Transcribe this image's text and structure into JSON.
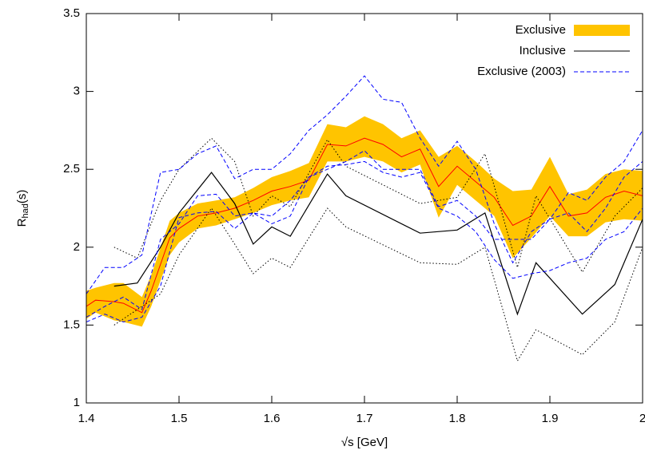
{
  "chart_data": {
    "type": "line",
    "x_label": "√s [GeV]",
    "y_label": {
      "base": "R",
      "subscript": "had",
      "suffix": "(s)"
    },
    "xlim": [
      1.4,
      2.0
    ],
    "ylim": [
      1,
      3.5
    ],
    "xticks": [
      1.4,
      1.5,
      1.6,
      1.7,
      1.8,
      1.9,
      2
    ],
    "yticks": [
      1,
      1.5,
      2,
      2.5,
      3,
      3.5
    ],
    "legend": "top-right",
    "series": [
      {
        "name": "Exclusive",
        "style": "band",
        "color": "#ff0000",
        "band_color": "#ffc400",
        "x": [
          1.4,
          1.41,
          1.43,
          1.44,
          1.46,
          1.47,
          1.49,
          1.5,
          1.52,
          1.54,
          1.56,
          1.58,
          1.6,
          1.62,
          1.64,
          1.66,
          1.68,
          1.7,
          1.72,
          1.74,
          1.76,
          1.78,
          1.8,
          1.82,
          1.84,
          1.86,
          1.88,
          1.9,
          1.92,
          1.94,
          1.96,
          1.98,
          2.0
        ],
        "values": [
          1.62,
          1.66,
          1.65,
          1.64,
          1.58,
          1.72,
          2.06,
          2.12,
          2.2,
          2.22,
          2.25,
          2.3,
          2.36,
          2.39,
          2.43,
          2.66,
          2.65,
          2.7,
          2.66,
          2.58,
          2.63,
          2.39,
          2.52,
          2.42,
          2.32,
          2.14,
          2.2,
          2.39,
          2.2,
          2.22,
          2.32,
          2.36,
          2.33
        ],
        "lower": [
          1.54,
          1.58,
          1.53,
          1.52,
          1.49,
          1.62,
          1.95,
          2.03,
          2.12,
          2.14,
          2.18,
          2.22,
          2.27,
          2.3,
          2.32,
          2.55,
          2.55,
          2.58,
          2.55,
          2.48,
          2.53,
          2.19,
          2.4,
          2.3,
          2.2,
          1.93,
          2.06,
          2.2,
          2.07,
          2.07,
          2.16,
          2.18,
          2.17
        ],
        "upper": [
          1.72,
          1.74,
          1.77,
          1.77,
          1.68,
          1.82,
          2.17,
          2.22,
          2.28,
          2.3,
          2.32,
          2.38,
          2.45,
          2.49,
          2.54,
          2.79,
          2.77,
          2.84,
          2.79,
          2.7,
          2.75,
          2.58,
          2.65,
          2.55,
          2.44,
          2.36,
          2.37,
          2.58,
          2.34,
          2.37,
          2.47,
          2.5,
          2.49
        ]
      },
      {
        "name": "Inclusive",
        "style": "solid",
        "color": "#000000",
        "x": [
          1.43,
          1.455,
          1.48,
          1.5,
          1.535,
          1.56,
          1.58,
          1.6,
          1.62,
          1.66,
          1.68,
          1.76,
          1.8,
          1.83,
          1.865,
          1.885,
          1.935,
          1.97,
          2.0
        ],
        "values": [
          1.75,
          1.77,
          2.0,
          2.22,
          2.48,
          2.28,
          2.02,
          2.13,
          2.07,
          2.47,
          2.33,
          2.09,
          2.11,
          2.22,
          1.57,
          1.9,
          1.57,
          1.76,
          2.18
        ],
        "lower": [
          1.5,
          1.6,
          1.7,
          1.95,
          2.25,
          2.02,
          1.83,
          1.93,
          1.87,
          2.25,
          2.13,
          1.9,
          1.89,
          2.0,
          1.27,
          1.47,
          1.31,
          1.52,
          2.0
        ],
        "upper": [
          2.0,
          1.93,
          2.3,
          2.5,
          2.7,
          2.55,
          2.2,
          2.33,
          2.26,
          2.69,
          2.52,
          2.28,
          2.32,
          2.6,
          1.87,
          2.33,
          1.84,
          2.2,
          2.38
        ]
      },
      {
        "name": "Exclusive (2003)",
        "style": "dashed",
        "color": "#0000ff",
        "x": [
          1.4,
          1.42,
          1.44,
          1.46,
          1.48,
          1.5,
          1.52,
          1.54,
          1.56,
          1.58,
          1.6,
          1.62,
          1.64,
          1.66,
          1.68,
          1.7,
          1.72,
          1.74,
          1.76,
          1.78,
          1.8,
          1.82,
          1.84,
          1.86,
          1.88,
          1.9,
          1.92,
          1.94,
          1.96,
          1.98,
          2.0
        ],
        "values": [
          1.55,
          1.62,
          1.68,
          1.6,
          2.05,
          2.15,
          2.33,
          2.34,
          2.2,
          2.22,
          2.2,
          2.3,
          2.45,
          2.5,
          2.55,
          2.62,
          2.5,
          2.5,
          2.5,
          2.26,
          2.3,
          2.2,
          2.05,
          2.05,
          2.05,
          2.18,
          2.22,
          2.1,
          2.25,
          2.45,
          2.55
        ],
        "lower": [
          1.52,
          1.57,
          1.52,
          1.55,
          1.75,
          2.19,
          2.22,
          2.23,
          2.12,
          2.22,
          2.15,
          2.2,
          2.45,
          2.52,
          2.53,
          2.55,
          2.48,
          2.45,
          2.48,
          2.25,
          2.2,
          2.1,
          1.92,
          1.8,
          1.83,
          1.85,
          1.9,
          1.93,
          2.05,
          2.1,
          2.25
        ],
        "upper": [
          1.7,
          1.87,
          1.87,
          1.95,
          2.48,
          2.5,
          2.6,
          2.65,
          2.44,
          2.5,
          2.5,
          2.6,
          2.75,
          2.85,
          2.97,
          3.1,
          2.95,
          2.93,
          2.7,
          2.52,
          2.68,
          2.5,
          2.15,
          1.9,
          2.1,
          2.18,
          2.35,
          2.3,
          2.45,
          2.55,
          2.75
        ]
      }
    ]
  }
}
